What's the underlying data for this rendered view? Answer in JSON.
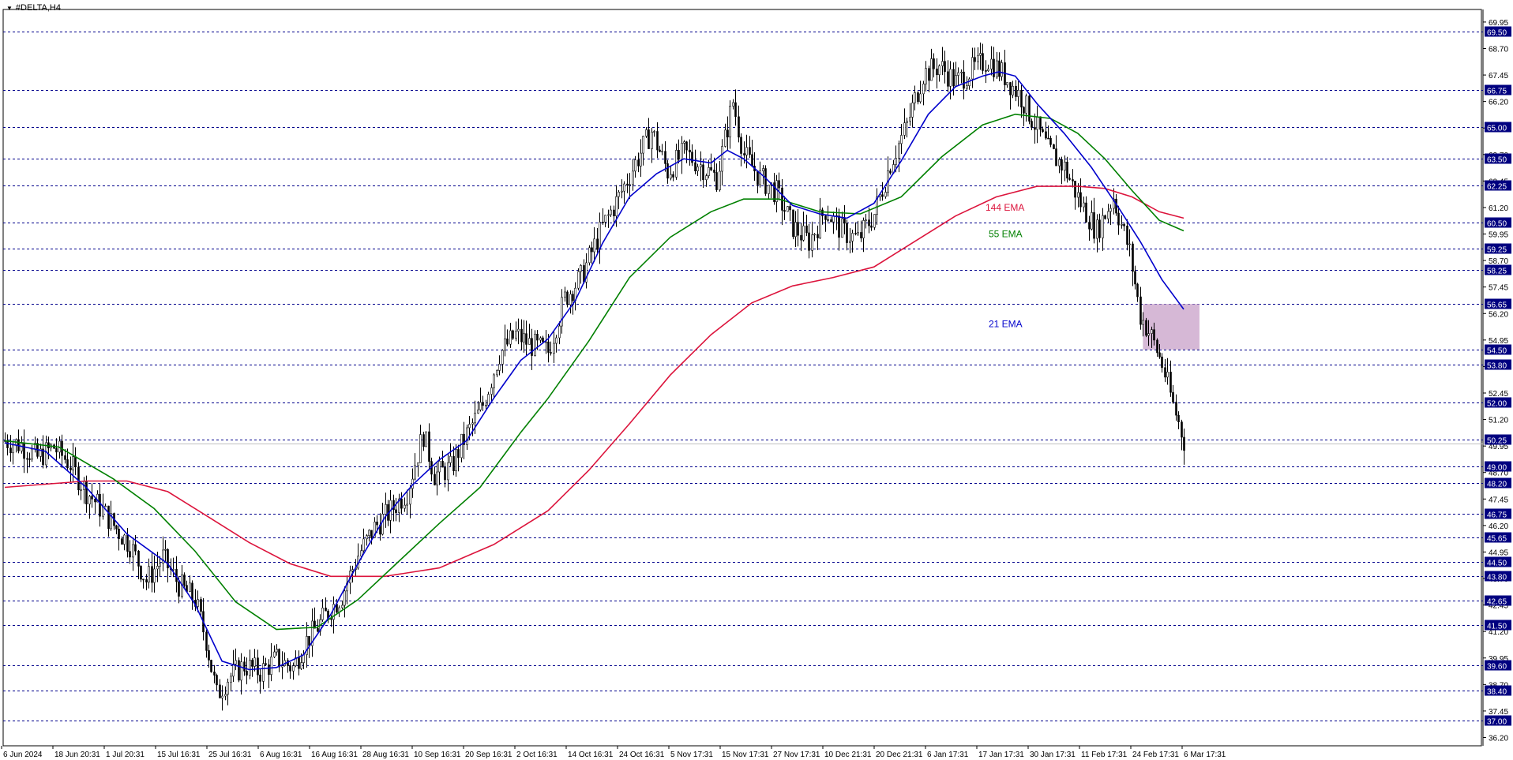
{
  "symbol": "#DELTA,H4",
  "colors": {
    "ema21": "#0000cc",
    "ema55": "#008000",
    "ema144": "#dc143c",
    "grid": "#00008b",
    "price_tag_bg": "#000080",
    "zone_fill": "#c8a0c8",
    "candle": "#000000",
    "current_line": "#c0c0c0"
  },
  "chart_data": {
    "type": "candlestick",
    "title": "#DELTA,H4",
    "ylim": [
      35.8,
      71.0
    ],
    "y_ticks": [
      "69.95",
      "68.70",
      "67.45",
      "66.20",
      "64.95",
      "63.70",
      "62.45",
      "61.20",
      "59.95",
      "58.70",
      "57.45",
      "56.20",
      "54.95",
      "53.70",
      "52.45",
      "51.20",
      "49.95",
      "48.70",
      "47.45",
      "46.20",
      "44.95",
      "43.70",
      "42.45",
      "41.20",
      "39.95",
      "38.70",
      "37.45",
      "36.20"
    ],
    "price_levels": [
      "69.50",
      "66.75",
      "65.00",
      "63.50",
      "62.25",
      "60.50",
      "59.25",
      "58.25",
      "56.65",
      "54.50",
      "53.80",
      "52.00",
      "50.25",
      "49.00",
      "48.20",
      "46.75",
      "45.65",
      "44.50",
      "43.80",
      "42.65",
      "41.50",
      "39.60",
      "38.40",
      "37.00"
    ],
    "current_price": 50.06,
    "x_labels": [
      "6 Jun 2024",
      "18 Jun 20:31",
      "1 Jul 20:31",
      "15 Jul 16:31",
      "25 Jul 16:31",
      "6 Aug 16:31",
      "16 Aug 16:31",
      "28 Aug 16:31",
      "10 Sep 16:31",
      "20 Sep 16:31",
      "2 Oct 16:31",
      "14 Oct 16:31",
      "24 Oct 16:31",
      "5 Nov 17:31",
      "15 Nov 17:31",
      "27 Nov 17:31",
      "10 Dec 21:31",
      "20 Dec 21:31",
      "6 Jan 17:31",
      "17 Jan 17:31",
      "30 Jan 17:31",
      "11 Feb 17:31",
      "24 Feb 17:31",
      "6 Mar 17:31"
    ],
    "close_path": [
      [
        0,
        50.2
      ],
      [
        6,
        50.0
      ],
      [
        12,
        49.4
      ],
      [
        18,
        49.9
      ],
      [
        24,
        49.1
      ],
      [
        30,
        47.8
      ],
      [
        36,
        46.9
      ],
      [
        40,
        46.2
      ],
      [
        46,
        45.3
      ],
      [
        52,
        43.6
      ],
      [
        58,
        44.7
      ],
      [
        64,
        43.4
      ],
      [
        70,
        42.7
      ],
      [
        74,
        40.8
      ],
      [
        78,
        38.2
      ],
      [
        82,
        39.0
      ],
      [
        88,
        39.6
      ],
      [
        94,
        39.3
      ],
      [
        100,
        39.9
      ],
      [
        106,
        39.5
      ],
      [
        110,
        40.6
      ],
      [
        116,
        41.6
      ],
      [
        120,
        42.3
      ],
      [
        124,
        42.9
      ],
      [
        130,
        44.8
      ],
      [
        136,
        46.1
      ],
      [
        142,
        46.9
      ],
      [
        148,
        47.8
      ],
      [
        154,
        50.5
      ],
      [
        158,
        48.6
      ],
      [
        164,
        48.9
      ],
      [
        170,
        50.5
      ],
      [
        176,
        51.9
      ],
      [
        182,
        54.3
      ],
      [
        188,
        55.2
      ],
      [
        194,
        54.7
      ],
      [
        200,
        54.4
      ],
      [
        206,
        56.9
      ],
      [
        212,
        57.9
      ],
      [
        220,
        60.3
      ],
      [
        226,
        61.7
      ],
      [
        232,
        63.3
      ],
      [
        238,
        64.8
      ],
      [
        244,
        62.9
      ],
      [
        250,
        63.8
      ],
      [
        256,
        63.2
      ],
      [
        262,
        62.6
      ],
      [
        268,
        66.2
      ],
      [
        272,
        63.7
      ],
      [
        278,
        62.6
      ],
      [
        284,
        61.9
      ],
      [
        290,
        60.3
      ],
      [
        296,
        59.6
      ],
      [
        302,
        61.1
      ],
      [
        308,
        60.1
      ],
      [
        314,
        59.7
      ],
      [
        320,
        60.9
      ],
      [
        326,
        63.3
      ],
      [
        332,
        65.1
      ],
      [
        338,
        67.5
      ],
      [
        344,
        67.9
      ],
      [
        350,
        67.1
      ],
      [
        356,
        67.7
      ],
      [
        362,
        68.2
      ],
      [
        368,
        67.4
      ],
      [
        374,
        66.4
      ],
      [
        378,
        65.4
      ],
      [
        384,
        63.9
      ],
      [
        390,
        63.1
      ],
      [
        396,
        61.4
      ],
      [
        402,
        60.1
      ],
      [
        408,
        61.7
      ],
      [
        414,
        59.1
      ],
      [
        418,
        56.1
      ],
      [
        422,
        55.1
      ],
      [
        426,
        53.8
      ],
      [
        430,
        51.9
      ],
      [
        434,
        50.2
      ]
    ],
    "ema21_path": [
      [
        0,
        50.1
      ],
      [
        15,
        49.7
      ],
      [
        30,
        48.0
      ],
      [
        45,
        45.8
      ],
      [
        60,
        44.4
      ],
      [
        70,
        42.5
      ],
      [
        80,
        39.8
      ],
      [
        90,
        39.4
      ],
      [
        100,
        39.5
      ],
      [
        110,
        40.1
      ],
      [
        120,
        42.0
      ],
      [
        130,
        44.4
      ],
      [
        140,
        46.6
      ],
      [
        150,
        48.1
      ],
      [
        160,
        49.3
      ],
      [
        170,
        50.2
      ],
      [
        180,
        52.2
      ],
      [
        190,
        54.0
      ],
      [
        200,
        55.0
      ],
      [
        210,
        56.8
      ],
      [
        220,
        59.5
      ],
      [
        230,
        61.7
      ],
      [
        240,
        62.8
      ],
      [
        250,
        63.5
      ],
      [
        260,
        63.3
      ],
      [
        266,
        63.9
      ],
      [
        272,
        63.5
      ],
      [
        280,
        62.6
      ],
      [
        290,
        61.3
      ],
      [
        300,
        60.9
      ],
      [
        310,
        60.7
      ],
      [
        320,
        61.4
      ],
      [
        330,
        63.4
      ],
      [
        340,
        65.6
      ],
      [
        350,
        66.9
      ],
      [
        360,
        67.4
      ],
      [
        366,
        67.6
      ],
      [
        372,
        67.4
      ],
      [
        380,
        66.1
      ],
      [
        390,
        64.7
      ],
      [
        400,
        63.1
      ],
      [
        410,
        61.2
      ],
      [
        418,
        59.6
      ],
      [
        426,
        57.8
      ],
      [
        434,
        56.4
      ]
    ],
    "ema55_path": [
      [
        0,
        50.2
      ],
      [
        20,
        49.9
      ],
      [
        40,
        48.4
      ],
      [
        55,
        47.0
      ],
      [
        70,
        45.0
      ],
      [
        85,
        42.6
      ],
      [
        100,
        41.3
      ],
      [
        115,
        41.4
      ],
      [
        130,
        42.7
      ],
      [
        145,
        44.5
      ],
      [
        160,
        46.3
      ],
      [
        175,
        48.0
      ],
      [
        190,
        50.6
      ],
      [
        200,
        52.2
      ],
      [
        215,
        54.9
      ],
      [
        230,
        57.9
      ],
      [
        245,
        59.8
      ],
      [
        260,
        61.0
      ],
      [
        272,
        61.6
      ],
      [
        285,
        61.6
      ],
      [
        300,
        61.0
      ],
      [
        315,
        60.9
      ],
      [
        330,
        61.7
      ],
      [
        345,
        63.6
      ],
      [
        360,
        65.1
      ],
      [
        372,
        65.6
      ],
      [
        385,
        65.4
      ],
      [
        395,
        64.7
      ],
      [
        405,
        63.5
      ],
      [
        415,
        62.0
      ],
      [
        425,
        60.6
      ],
      [
        434,
        60.1
      ]
    ],
    "ema144_path": [
      [
        0,
        48.0
      ],
      [
        30,
        48.3
      ],
      [
        45,
        48.3
      ],
      [
        60,
        47.8
      ],
      [
        75,
        46.6
      ],
      [
        90,
        45.4
      ],
      [
        105,
        44.4
      ],
      [
        120,
        43.8
      ],
      [
        140,
        43.8
      ],
      [
        160,
        44.2
      ],
      [
        180,
        45.3
      ],
      [
        200,
        46.9
      ],
      [
        215,
        48.8
      ],
      [
        230,
        51.0
      ],
      [
        245,
        53.3
      ],
      [
        260,
        55.2
      ],
      [
        275,
        56.7
      ],
      [
        290,
        57.5
      ],
      [
        305,
        57.9
      ],
      [
        320,
        58.4
      ],
      [
        335,
        59.6
      ],
      [
        350,
        60.8
      ],
      [
        365,
        61.7
      ],
      [
        380,
        62.2
      ],
      [
        395,
        62.2
      ],
      [
        405,
        62.1
      ],
      [
        415,
        61.7
      ],
      [
        425,
        61.0
      ],
      [
        434,
        60.7
      ]
    ],
    "series": [
      {
        "name": "21 EMA"
      },
      {
        "name": "55 EMA"
      },
      {
        "name": "144 EMA"
      }
    ],
    "zone": {
      "x_start": 419,
      "x_end": 434,
      "y_low": 54.5,
      "y_high": 56.65
    }
  }
}
